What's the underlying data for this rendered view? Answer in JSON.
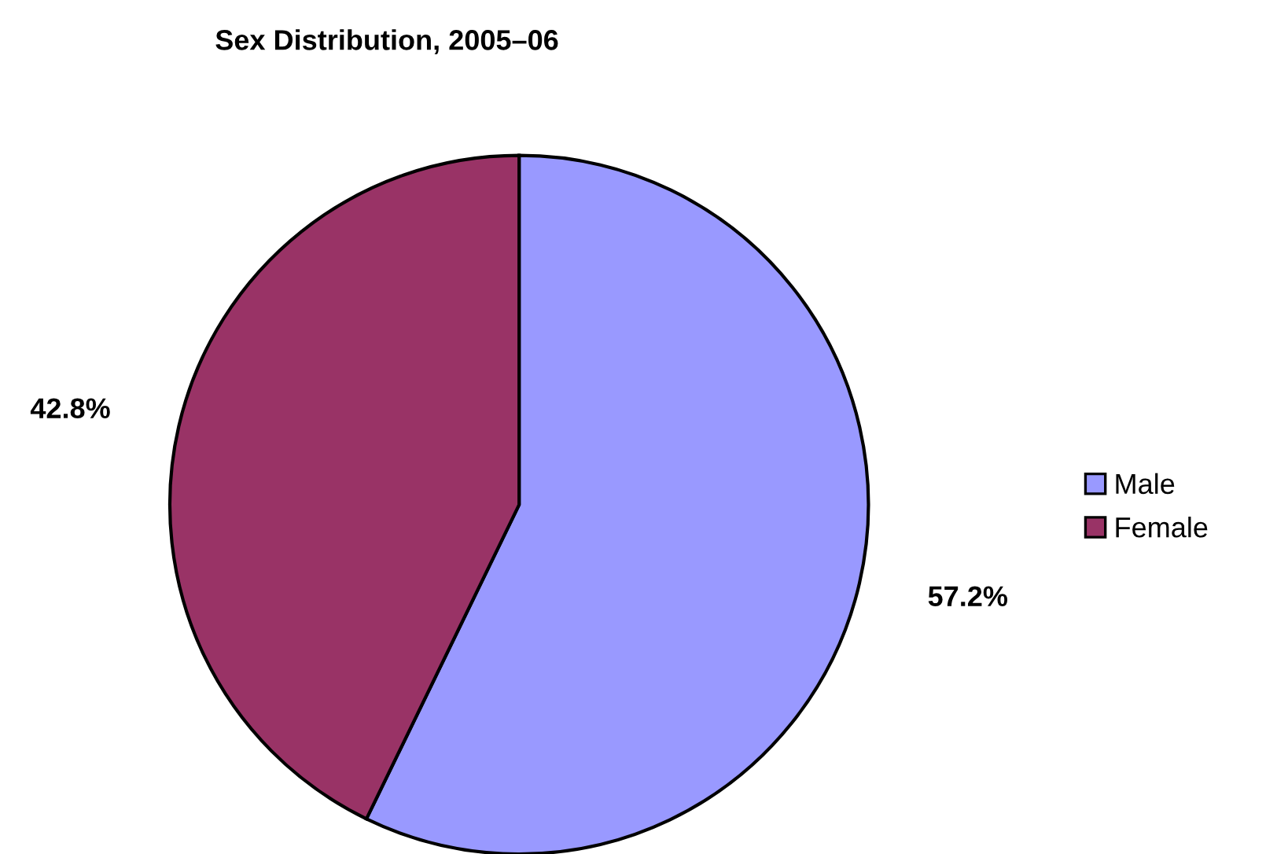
{
  "chart_data": {
    "type": "pie",
    "title": "Sex Distribution, 2005–06",
    "categories": [
      "Male",
      "Female"
    ],
    "values": [
      57.2,
      42.8
    ],
    "colors": [
      "#9999ff",
      "#993366"
    ],
    "value_labels": [
      "57.2%",
      "42.8%"
    ],
    "legend": "right"
  }
}
